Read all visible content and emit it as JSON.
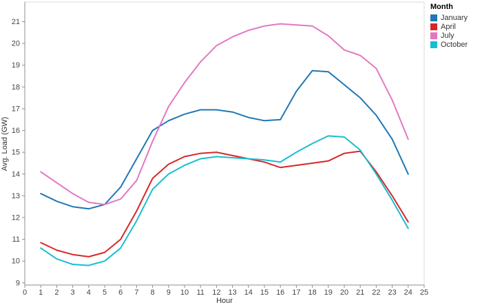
{
  "chart_data": {
    "type": "line",
    "title": "",
    "xlabel": "Hour",
    "ylabel": "Avg. Load (GW)",
    "legend_title": "Month",
    "legend_position": "right",
    "grid": false,
    "xlim": [
      0,
      25
    ],
    "ylim": [
      8.9,
      21.9
    ],
    "x_ticks": [
      0,
      1,
      2,
      3,
      4,
      5,
      6,
      7,
      8,
      9,
      10,
      11,
      12,
      13,
      14,
      15,
      16,
      17,
      18,
      19,
      20,
      21,
      22,
      23,
      24,
      25
    ],
    "y_ticks": [
      9,
      10,
      11,
      12,
      13,
      14,
      15,
      16,
      17,
      18,
      19,
      20,
      21
    ],
    "x": [
      1,
      2,
      3,
      4,
      5,
      6,
      7,
      8,
      9,
      10,
      11,
      12,
      13,
      14,
      15,
      16,
      17,
      18,
      19,
      20,
      21,
      22,
      23,
      24
    ],
    "series": [
      {
        "name": "January",
        "color": "#1f77b4",
        "values": [
          13.1,
          12.75,
          12.5,
          12.4,
          12.6,
          13.4,
          14.7,
          16.0,
          16.45,
          16.75,
          16.95,
          16.95,
          16.85,
          16.6,
          16.45,
          16.5,
          17.8,
          18.75,
          18.7,
          18.1,
          17.5,
          16.7,
          15.6,
          14.0
        ]
      },
      {
        "name": "April",
        "color": "#d62728",
        "values": [
          10.85,
          10.5,
          10.3,
          10.2,
          10.4,
          11.0,
          12.3,
          13.8,
          14.45,
          14.8,
          14.95,
          15.0,
          14.85,
          14.7,
          14.55,
          14.3,
          14.4,
          14.5,
          14.6,
          14.95,
          15.05,
          14.1,
          13.0,
          11.8
        ]
      },
      {
        "name": "July",
        "color": "#e377c2",
        "values": [
          14.1,
          13.6,
          13.1,
          12.7,
          12.6,
          12.85,
          13.7,
          15.5,
          17.1,
          18.2,
          19.15,
          19.9,
          20.3,
          20.6,
          20.8,
          20.9,
          20.85,
          20.8,
          20.35,
          19.7,
          19.45,
          18.85,
          17.4,
          15.6
        ]
      },
      {
        "name": "October",
        "color": "#17becf",
        "values": [
          10.6,
          10.1,
          9.85,
          9.8,
          10.0,
          10.6,
          11.85,
          13.3,
          14.0,
          14.4,
          14.7,
          14.8,
          14.75,
          14.7,
          14.65,
          14.55,
          15.0,
          15.4,
          15.75,
          15.7,
          15.1,
          14.0,
          12.8,
          11.5
        ]
      }
    ],
    "style": {
      "plot_border_color": "#d9d9d9",
      "axis_line_color": "#8c8c8c",
      "tick_color": "#8c8c8c",
      "background": "#ffffff",
      "line_width": 2
    }
  },
  "legend": {
    "title": "Month"
  }
}
